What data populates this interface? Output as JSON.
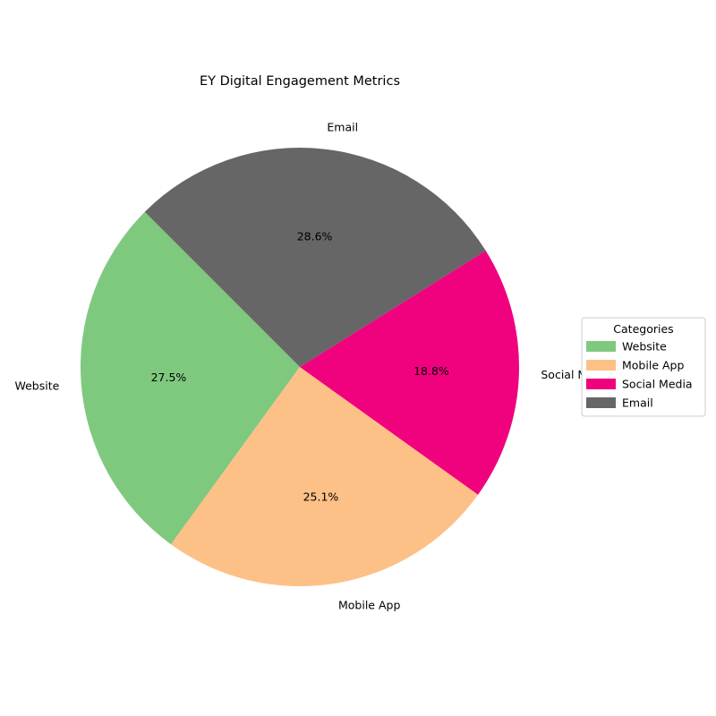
{
  "chart_data": {
    "type": "pie",
    "title": "EY Digital Engagement Metrics",
    "categories": [
      "Website",
      "Mobile App",
      "Social Media",
      "Email"
    ],
    "values": [
      27.5,
      25.1,
      18.8,
      28.6
    ],
    "value_labels": [
      "27.5%",
      "25.1%",
      "18.8%",
      "28.6%"
    ],
    "colors": [
      "#7fc97f",
      "#fdc086",
      "#f0027f",
      "#666666"
    ],
    "start_angle_deg": 135,
    "direction": "counterclockwise",
    "legend": {
      "title": "Categories",
      "placement": "center-right",
      "entries": [
        "Website",
        "Mobile App",
        "Social Media",
        "Email"
      ]
    }
  }
}
